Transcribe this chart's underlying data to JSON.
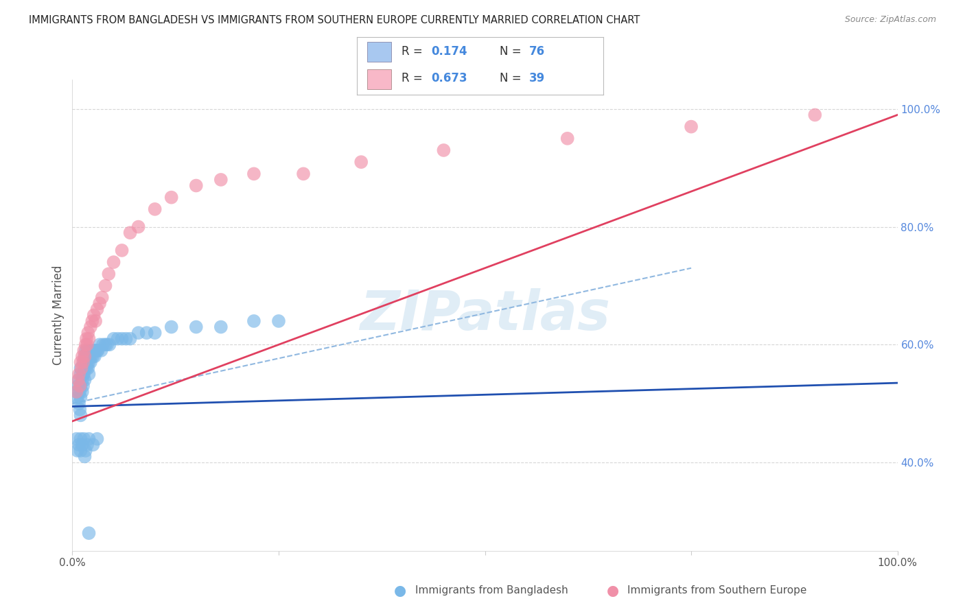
{
  "title": "IMMIGRANTS FROM BANGLADESH VS IMMIGRANTS FROM SOUTHERN EUROPE CURRENTLY MARRIED CORRELATION CHART",
  "source": "Source: ZipAtlas.com",
  "ylabel": "Currently Married",
  "ylabel_right_ticks": [
    "40.0%",
    "60.0%",
    "80.0%",
    "100.0%"
  ],
  "ylabel_right_vals": [
    0.4,
    0.6,
    0.8,
    1.0
  ],
  "legend_color1": "#a8c8f0",
  "legend_color2": "#f8b8c8",
  "watermark": "ZIPatlas",
  "bg_color": "#ffffff",
  "grid_color": "#cccccc",
  "scatter_blue_color": "#7ab8e8",
  "scatter_pink_color": "#f090a8",
  "line_blue_color": "#2050b0",
  "line_pink_color": "#e04060",
  "line_dashed_color": "#90b8e0",
  "footer_label1": "Immigrants from Bangladesh",
  "footer_label2": "Immigrants from Southern Europe",
  "blue_x": [
    0.005,
    0.006,
    0.007,
    0.008,
    0.008,
    0.009,
    0.009,
    0.01,
    0.01,
    0.01,
    0.01,
    0.01,
    0.012,
    0.012,
    0.013,
    0.013,
    0.014,
    0.014,
    0.015,
    0.015,
    0.015,
    0.016,
    0.016,
    0.017,
    0.017,
    0.018,
    0.018,
    0.019,
    0.019,
    0.02,
    0.02,
    0.02,
    0.021,
    0.022,
    0.022,
    0.023,
    0.024,
    0.025,
    0.026,
    0.027,
    0.028,
    0.03,
    0.031,
    0.033,
    0.035,
    0.037,
    0.04,
    0.042,
    0.045,
    0.05,
    0.055,
    0.06,
    0.065,
    0.07,
    0.08,
    0.09,
    0.1,
    0.12,
    0.15,
    0.18,
    0.22,
    0.25,
    0.005,
    0.006,
    0.008,
    0.01,
    0.01,
    0.012,
    0.014,
    0.015,
    0.016,
    0.018,
    0.02,
    0.025,
    0.03,
    0.02
  ],
  "blue_y": [
    0.52,
    0.51,
    0.53,
    0.5,
    0.54,
    0.52,
    0.49,
    0.55,
    0.53,
    0.51,
    0.48,
    0.56,
    0.54,
    0.52,
    0.55,
    0.53,
    0.57,
    0.55,
    0.58,
    0.56,
    0.54,
    0.59,
    0.57,
    0.58,
    0.56,
    0.59,
    0.57,
    0.58,
    0.56,
    0.59,
    0.57,
    0.55,
    0.58,
    0.59,
    0.57,
    0.58,
    0.59,
    0.58,
    0.59,
    0.58,
    0.59,
    0.59,
    0.59,
    0.6,
    0.59,
    0.6,
    0.6,
    0.6,
    0.6,
    0.61,
    0.61,
    0.61,
    0.61,
    0.61,
    0.62,
    0.62,
    0.62,
    0.63,
    0.63,
    0.63,
    0.64,
    0.64,
    0.44,
    0.42,
    0.43,
    0.44,
    0.42,
    0.43,
    0.44,
    0.41,
    0.42,
    0.43,
    0.44,
    0.43,
    0.44,
    0.28
  ],
  "pink_x": [
    0.005,
    0.007,
    0.008,
    0.009,
    0.01,
    0.011,
    0.012,
    0.013,
    0.014,
    0.015,
    0.016,
    0.017,
    0.018,
    0.019,
    0.02,
    0.022,
    0.024,
    0.026,
    0.028,
    0.03,
    0.033,
    0.036,
    0.04,
    0.044,
    0.05,
    0.06,
    0.07,
    0.08,
    0.1,
    0.12,
    0.15,
    0.18,
    0.22,
    0.28,
    0.35,
    0.45,
    0.6,
    0.75,
    0.9
  ],
  "pink_y": [
    0.52,
    0.54,
    0.55,
    0.53,
    0.57,
    0.56,
    0.58,
    0.57,
    0.59,
    0.58,
    0.6,
    0.61,
    0.6,
    0.62,
    0.61,
    0.63,
    0.64,
    0.65,
    0.64,
    0.66,
    0.67,
    0.68,
    0.7,
    0.72,
    0.74,
    0.76,
    0.79,
    0.8,
    0.83,
    0.85,
    0.87,
    0.88,
    0.89,
    0.89,
    0.91,
    0.93,
    0.95,
    0.97,
    0.99
  ],
  "xlim": [
    0.0,
    1.0
  ],
  "ylim": [
    0.25,
    1.05
  ],
  "blue_trend": [
    0.0,
    1.0,
    0.495,
    0.535
  ],
  "pink_trend": [
    0.0,
    1.0,
    0.47,
    0.99
  ],
  "dashed_line": [
    0.0,
    0.75,
    0.5,
    0.73
  ]
}
